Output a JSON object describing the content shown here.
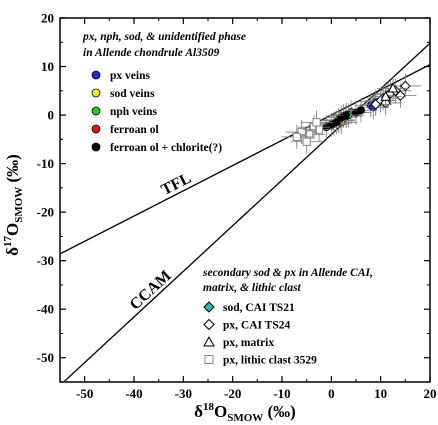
{
  "chart_data": {
    "type": "scatter",
    "xlabel": {
      "base": "δ",
      "sup": "18",
      "mid": "O",
      "sub": "SMOW",
      "unit": " (‰)"
    },
    "ylabel": {
      "base": "δ",
      "sup": "17",
      "mid": "O",
      "sub": "SMOW",
      "unit": " (‰)"
    },
    "xlim": [
      -55,
      20
    ],
    "ylim": [
      -55,
      20
    ],
    "x_ticks": [
      -50,
      -40,
      -30,
      -20,
      -10,
      0,
      10,
      20
    ],
    "y_ticks": [
      -50,
      -40,
      -30,
      -20,
      -10,
      0,
      10,
      20
    ],
    "grid": false,
    "reference_lines": [
      {
        "name": "TFL",
        "slope": 0.52,
        "intercept": 0
      },
      {
        "name": "CCAM",
        "slope": 0.94,
        "intercept": -4.0
      }
    ],
    "legend_top": {
      "title_line1": "px, nph, sod, & unidentified phase",
      "title_line2": "in Allende chondrule Al3509",
      "items": [
        {
          "label": "px veins",
          "color": "#1f2fd6",
          "marker": "circle"
        },
        {
          "label": "sod veins",
          "color": "#f2ea1c",
          "marker": "circle"
        },
        {
          "label": "nph veins",
          "color": "#2ec92e",
          "marker": "circle"
        },
        {
          "label": "ferroan ol",
          "color": "#d41c1c",
          "marker": "circle"
        },
        {
          "label": "ferroan ol + chlorite(?)",
          "color": "#000000",
          "marker": "circle"
        }
      ]
    },
    "legend_bottom": {
      "title_line1": "secondary sod & px in Allende CAI,",
      "title_line2": "matrix, & lithic clast",
      "items": [
        {
          "label": "sod, CAI TS21",
          "color": "#2bb8c6",
          "marker": "diamond-filled"
        },
        {
          "label": "px, CAI TS24",
          "color": "#000000",
          "marker": "diamond-open"
        },
        {
          "label": "px, matrix",
          "color": "#000000",
          "marker": "triangle-open"
        },
        {
          "label": "px, lithic clast 3529",
          "color": "#888888",
          "marker": "square-open"
        }
      ]
    },
    "series": [
      {
        "name": "px veins",
        "marker": "circle",
        "color": "#1f2fd6",
        "x": [
          8.0,
          9.0,
          8.5
        ],
        "y": [
          2.0,
          2.8,
          1.6
        ]
      },
      {
        "name": "sod veins",
        "marker": "circle",
        "color": "#f2ea1c",
        "x": [
          1.5,
          2.5,
          2.0
        ],
        "y": [
          -1.0,
          -0.2,
          -1.5
        ]
      },
      {
        "name": "nph veins",
        "marker": "circle",
        "color": "#2ec92e",
        "x": [
          3.0,
          4.0,
          3.5
        ],
        "y": [
          -0.2,
          0.6,
          0.0
        ]
      },
      {
        "name": "ferroan ol",
        "marker": "circle",
        "color": "#d41c1c",
        "x": [
          0.5,
          1.5
        ],
        "y": [
          -1.8,
          -1.2
        ]
      },
      {
        "name": "ferroan ol + chlorite(?)",
        "marker": "circle",
        "color": "#000000",
        "x": [
          -1.0,
          0.0,
          1.0,
          2.0,
          5.0,
          6.0,
          3.0
        ],
        "y": [
          -2.5,
          -2.0,
          -1.5,
          -0.5,
          0.5,
          1.0,
          0.0
        ]
      },
      {
        "name": "sod, CAI TS21",
        "marker": "diamond-filled",
        "color": "#2bb8c6",
        "x": [
          10.5,
          11.5
        ],
        "y": [
          3.5,
          4.2
        ]
      },
      {
        "name": "px, CAI TS24",
        "marker": "diamond-open",
        "color": "#000000",
        "x": [
          10.0,
          11.0,
          12.0,
          13.0,
          14.0,
          15.0,
          9.0
        ],
        "y": [
          3.0,
          2.5,
          4.5,
          5.0,
          4.0,
          6.0,
          2.2
        ]
      },
      {
        "name": "px, matrix",
        "marker": "triangle-open",
        "color": "#000000",
        "x": [
          11.0,
          12.5
        ],
        "y": [
          3.8,
          5.5
        ]
      },
      {
        "name": "px, lithic clast 3529",
        "marker": "square-open",
        "color": "#888888",
        "x": [
          -6.0,
          -4.5,
          -3.5,
          -2.5,
          -5.0,
          -7.0,
          -3.0
        ],
        "y": [
          -3.5,
          -4.0,
          -2.5,
          -3.0,
          -5.5,
          -4.5,
          -1.5
        ]
      }
    ]
  }
}
